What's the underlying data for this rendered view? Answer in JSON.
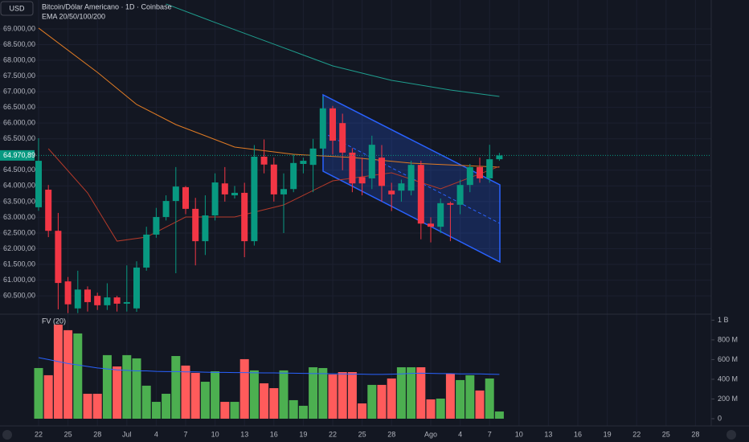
{
  "chart_data": {
    "type": "candlestick",
    "currency": "USD",
    "title": "Bitcoin/Dólar Americano · 1D · Coinbase",
    "subtitle": "EMA 20/50/100/200",
    "categories": [
      "22",
      null,
      null,
      "25",
      null,
      null,
      "28",
      null,
      null,
      "Jul",
      null,
      null,
      "4",
      null,
      null,
      "7",
      null,
      null,
      "10",
      null,
      null,
      "13",
      null,
      null,
      "16",
      null,
      null,
      "19",
      null,
      null,
      "22",
      null,
      null,
      "25",
      null,
      null,
      "28",
      null,
      null,
      null,
      "Ago",
      null,
      null,
      "4",
      null,
      null,
      "7",
      null,
      null,
      "10",
      null,
      null,
      "13",
      null,
      null,
      "16",
      null,
      null,
      "19",
      null,
      null,
      "22",
      null,
      null,
      "25",
      null,
      null,
      "28",
      null
    ],
    "open": [
      63320,
      63880,
      62570,
      60960,
      60100,
      60700,
      60500,
      60200,
      60450,
      60250,
      60100,
      61400,
      62450,
      63010,
      63520,
      63960,
      63270,
      62240,
      63060,
      64080,
      63700,
      63780,
      62240,
      64930,
      64680,
      63730,
      63900,
      64700,
      64670,
      65190,
      66470,
      66000,
      65060,
      64280,
      64240,
      64900,
      63850,
      63850,
      63850,
      64670,
      62800,
      62700,
      63450,
      63400,
      64030,
      64600,
      64240,
      64850,
      null,
      null,
      null,
      null,
      null,
      null,
      null,
      null,
      null,
      null,
      null,
      null,
      null,
      null,
      null,
      null,
      null,
      null,
      null,
      null,
      null
    ],
    "high": [
      65520,
      64030,
      63140,
      61100,
      61300,
      60800,
      60600,
      60900,
      60500,
      61470,
      61600,
      62700,
      63300,
      63700,
      64600,
      64000,
      63620,
      63700,
      64400,
      64600,
      64000,
      64100,
      65300,
      65480,
      64900,
      64400,
      65000,
      64900,
      65500,
      66850,
      66550,
      66300,
      65200,
      64900,
      65600,
      65300,
      64100,
      64200,
      64800,
      64800,
      63000,
      63600,
      63500,
      64200,
      64700,
      64900,
      65310,
      65050,
      null,
      null,
      null,
      null,
      null,
      null,
      null,
      null,
      null,
      null,
      null,
      null,
      null,
      null,
      null,
      null,
      null,
      null,
      null,
      null,
      null
    ],
    "low": [
      63210,
      62370,
      60070,
      59950,
      59950,
      60000,
      60050,
      60050,
      60000,
      60000,
      59990,
      61300,
      62350,
      62900,
      61220,
      63100,
      61470,
      61800,
      62900,
      63500,
      63600,
      61730,
      62100,
      64400,
      63500,
      62500,
      63800,
      64400,
      63800,
      65000,
      65000,
      64500,
      63800,
      63700,
      63900,
      63500,
      63200,
      63500,
      63700,
      62300,
      62200,
      62500,
      62240,
      63100,
      63800,
      64100,
      64100,
      64800,
      null,
      null,
      null,
      null,
      null,
      null,
      null,
      null,
      null,
      null,
      null,
      null,
      null,
      null,
      null,
      null,
      null,
      null,
      null,
      null,
      null
    ],
    "close": [
      64800,
      62570,
      60910,
      60230,
      60700,
      60300,
      60200,
      60450,
      60250,
      60300,
      61400,
      62450,
      63010,
      63520,
      63980,
      63270,
      62240,
      63060,
      64110,
      63730,
      63780,
      62240,
      64930,
      64680,
      63730,
      63900,
      64730,
      64800,
      65190,
      66470,
      65440,
      65060,
      64080,
      64080,
      65310,
      64000,
      63730,
      64080,
      64670,
      62800,
      62700,
      63450,
      63400,
      64030,
      64600,
      64240,
      64850,
      64970.89,
      null,
      null,
      null,
      null,
      null,
      null,
      null,
      null,
      null,
      null,
      null,
      null,
      null,
      null,
      null,
      null,
      null,
      null,
      null,
      null,
      null
    ],
    "up_color": "#089981",
    "down_color": "#f23645",
    "ylim": [
      59940,
      69920
    ],
    "yticks": [
      {
        "value": 60500,
        "label": "60.500,00"
      },
      {
        "value": 61000,
        "label": "61.000,00"
      },
      {
        "value": 61500,
        "label": "61.500,00"
      },
      {
        "value": 62000,
        "label": "62.000,00"
      },
      {
        "value": 62500,
        "label": "62.500,00"
      },
      {
        "value": 63000,
        "label": "63.000,00"
      },
      {
        "value": 63500,
        "label": "63.500,00"
      },
      {
        "value": 64000,
        "label": "64.000,00"
      },
      {
        "value": 64500,
        "label": "64.500,00"
      },
      {
        "value": 65500,
        "label": "65.500,00"
      },
      {
        "value": 66000,
        "label": "66.000,00"
      },
      {
        "value": 66500,
        "label": "66.500,00"
      },
      {
        "value": 67000,
        "label": "67.000,00"
      },
      {
        "value": 67500,
        "label": "67.500,00"
      },
      {
        "value": 68000,
        "label": "68.000,00"
      },
      {
        "value": 68500,
        "label": "68.500,00"
      },
      {
        "value": 69000,
        "label": "69.000,00"
      }
    ],
    "last_price": {
      "value": 64970.89,
      "label": "64.970,89"
    },
    "grid": true,
    "ema": [
      {
        "color": "#1f9e8e",
        "x": [
          13,
          18,
          24,
          30,
          36,
          42,
          47
        ],
        "values": [
          69794,
          69205,
          68514,
          67822,
          67362,
          67054,
          66850
        ]
      },
      {
        "color": "#e07b24",
        "x": [
          0,
          6,
          10,
          14,
          20,
          26,
          32,
          38,
          47
        ],
        "values": [
          69026,
          67618,
          66594,
          65954,
          65237,
          65006,
          64904,
          64725,
          64597
        ]
      },
      {
        "color": "#b53a2a",
        "x": [
          1,
          5,
          8,
          11,
          15,
          20,
          25,
          30,
          36,
          41,
          47
        ],
        "values": [
          65186,
          63778,
          62242,
          62370,
          63010,
          63010,
          63394,
          64162,
          64418,
          63906,
          64622
        ]
      }
    ],
    "volume": {
      "title": "FV (20)",
      "values": [
        514,
        441,
        955,
        898,
        865,
        253,
        253,
        645,
        530,
        645,
        612,
        335,
        171,
        253,
        636,
        539,
        465,
        375,
        481,
        171,
        171,
        604,
        490,
        359,
        310,
        490,
        188,
        131,
        522,
        514,
        449,
        473,
        473,
        155,
        343,
        343,
        408,
        522,
        522,
        522,
        196,
        204,
        457,
        392,
        441,
        286,
        408,
        73,
        null,
        null,
        null,
        null,
        null,
        null,
        null,
        null,
        null,
        null,
        null,
        null,
        null,
        null,
        null,
        null,
        null,
        null,
        null,
        null,
        null
      ],
      "up_color": "#4caf50",
      "down_color": "#ff5b5b",
      "ma": {
        "color": "#2962ff",
        "values": [
          620,
          600,
          580,
          560,
          545,
          530,
          515,
          505,
          495,
          490,
          485,
          485,
          480,
          478,
          478,
          475,
          475,
          472,
          470,
          470,
          468,
          468,
          466,
          465,
          465,
          463,
          462,
          460,
          458,
          458,
          456,
          455,
          453,
          452,
          450,
          450,
          452,
          455,
          460,
          462,
          460,
          458,
          458,
          455,
          455,
          455,
          452,
          450,
          null,
          null,
          null,
          null,
          null,
          null,
          null,
          null,
          null,
          null,
          null,
          null,
          null,
          null,
          null,
          null,
          null,
          null,
          null,
          null,
          null
        ]
      },
      "ylim": [
        0,
        1052
      ],
      "yticks": [
        0,
        {
          "value": 200,
          "label": "200 M"
        },
        {
          "value": 400,
          "label": "400 M"
        },
        {
          "value": 600,
          "label": "600 M"
        },
        {
          "value": 800,
          "label": "800 M"
        },
        {
          "value": 1000,
          "label": "1 B"
        }
      ]
    }
  }
}
